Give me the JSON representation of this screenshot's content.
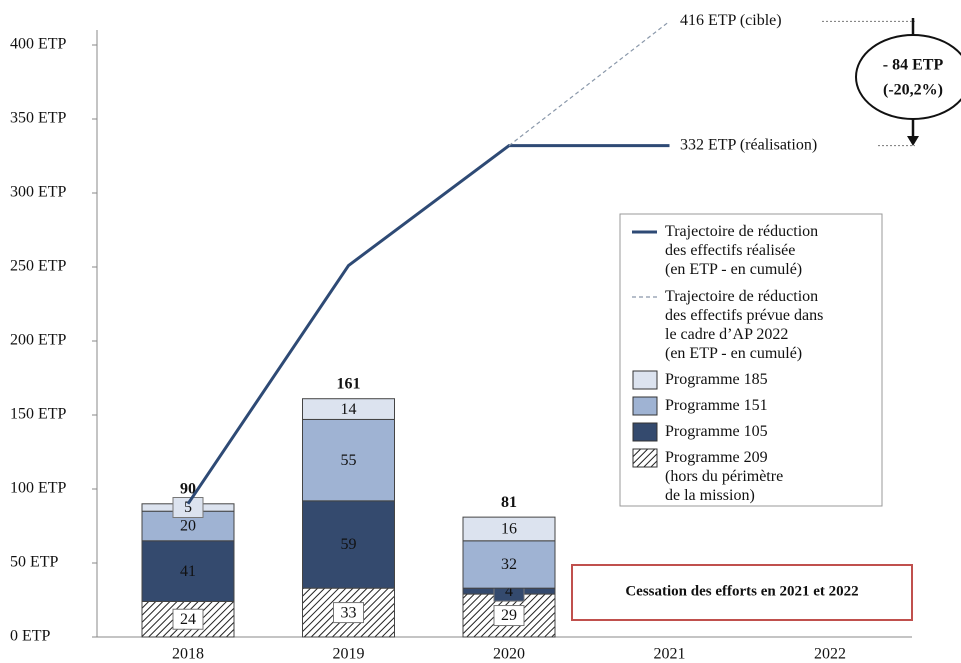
{
  "chart_data": {
    "type": "stacked-bar-line",
    "categories": [
      "2018",
      "2019",
      "2020",
      "2021",
      "2022"
    ],
    "ylim": [
      0,
      400
    ],
    "yticks": [
      {
        "value": 0,
        "label": "0 ETP"
      },
      {
        "value": 50,
        "label": "50 ETP"
      },
      {
        "value": 100,
        "label": "100 ETP"
      },
      {
        "value": 150,
        "label": "150 ETP"
      },
      {
        "value": 200,
        "label": "200 ETP"
      },
      {
        "value": 250,
        "label": "250 ETP"
      },
      {
        "value": 300,
        "label": "300 ETP"
      },
      {
        "value": 350,
        "label": "350 ETP"
      },
      {
        "value": 400,
        "label": "400 ETP"
      }
    ],
    "bar_series": [
      {
        "name": "Programme 209\n(hors du périmètre\nde la mission)",
        "color": "#ffffff",
        "hatch": true,
        "values": [
          24,
          33,
          29,
          null,
          null
        ]
      },
      {
        "name": "Programme 105",
        "color": "#344a6e",
        "values": [
          41,
          59,
          4,
          null,
          null
        ]
      },
      {
        "name": "Programme 151",
        "color": "#9fb3d3",
        "values": [
          20,
          55,
          32,
          null,
          null
        ]
      },
      {
        "name": "Programme 185",
        "color": "#dce3ef",
        "values": [
          5,
          14,
          16,
          null,
          null
        ]
      }
    ],
    "totals": [
      90,
      161,
      81,
      null,
      null
    ],
    "line_series": [
      {
        "name": "Trajectoire de réduction\ndes effectifs réalisée\n(en ETP - en cumulé)",
        "color": "#2e4a75",
        "dashed": false,
        "values": [
          90,
          251,
          332,
          332,
          null
        ]
      },
      {
        "name": "Trajectoire de réduction\ndes effectifs prévue dans\nle cadre d’AP 2022\n(en ETP - en cumulé)",
        "color": "#8a98aa",
        "dashed": true,
        "values": [
          null,
          null,
          332,
          416,
          null
        ]
      }
    ],
    "annotations": [
      "416 ETP (cible)",
      "332 ETP (réalisation)"
    ],
    "gap_label": [
      "- 84 ETP",
      "(-20,2%)"
    ],
    "note": "Cessation des efforts en 2021 et 2022"
  }
}
